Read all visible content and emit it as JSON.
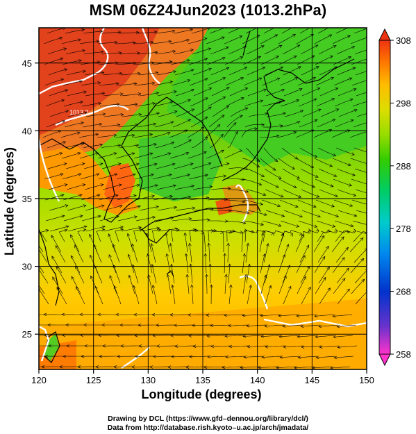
{
  "title": "MSM 06Z24Jun2023 (1013.2hPa)",
  "axes": {
    "xlabel": "Longitude (degrees)",
    "ylabel": "Latitude  (degrees)",
    "xticks": [
      "120",
      "125",
      "130",
      "135",
      "140",
      "145",
      "150"
    ],
    "yticks": [
      "25",
      "30",
      "35",
      "40",
      "45"
    ],
    "xlim": [
      120,
      150
    ],
    "ylim": [
      22.4,
      47.6
    ]
  },
  "colorbar": {
    "labels": [
      "308",
      "298",
      "288",
      "278",
      "268",
      "258"
    ],
    "min": 258,
    "max": 308,
    "colors": [
      "#ff33cc",
      "#6633cc",
      "#0033cc",
      "#0088ee",
      "#00cccc",
      "#00cc66",
      "#33cc00",
      "#99dd00",
      "#dddd00",
      "#ffbb00",
      "#ff7700",
      "#ee3311"
    ]
  },
  "contour_label": "1013.2",
  "credits": {
    "line1": "Drawing by DCL (https://www.gfd–dennou.org/library/dcl/)",
    "line2": "Data from http://database.rish.kyoto–u.ac.jp/arch/jmadata/"
  }
}
